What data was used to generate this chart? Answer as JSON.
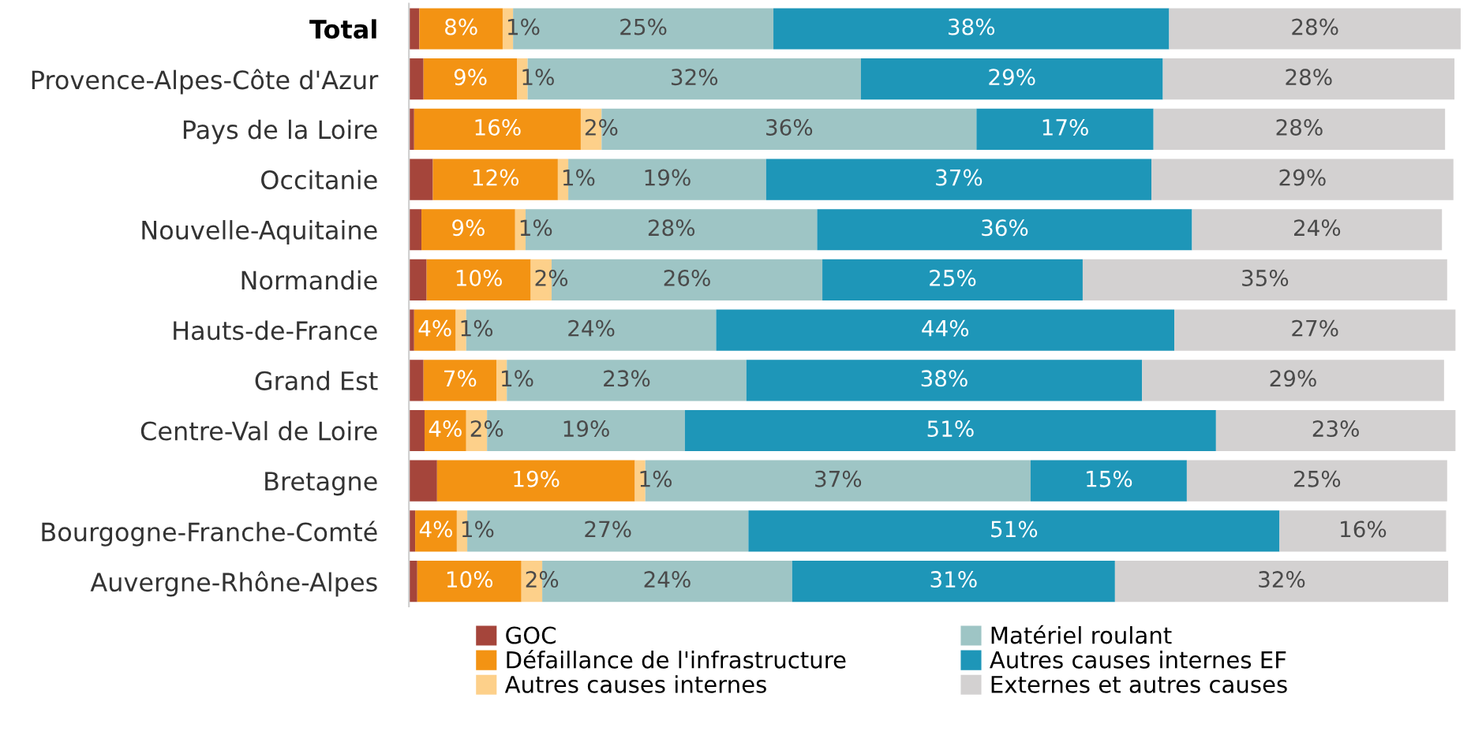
{
  "chart_data": {
    "type": "bar",
    "orientation": "horizontal",
    "stacked": true,
    "legend": "bottom",
    "categories": [
      "Total",
      "Provence-Alpes-Côte d'Azur",
      "Pays de la Loire",
      "Occitanie",
      "Nouvelle-Aquitaine",
      "Normandie",
      "Hauts-de-France",
      "Grand Est",
      "Centre-Val de Loire",
      "Bretagne",
      "Bourgogne-Franche-Comté",
      "Auvergne-Rhône-Alpes"
    ],
    "series": [
      {
        "name": "GOC",
        "color": "#a5453b",
        "values": [
          1,
          1.4,
          0.5,
          2.3,
          1.2,
          1.7,
          0.5,
          1.4,
          1.5,
          2.7,
          0.6,
          0.8
        ]
      },
      {
        "name": "Défaillance de l'infrastructure",
        "color": "#f39313",
        "values": [
          8,
          9,
          16,
          12,
          9,
          10,
          4,
          7,
          4,
          19,
          4,
          10
        ],
        "value_labels": [
          "8%",
          "9%",
          "16%",
          "12%",
          "9%",
          "10%",
          "4%",
          "7%",
          "4%",
          "19%",
          "4%",
          "10%"
        ]
      },
      {
        "name": "Autres causes internes",
        "color": "#fdd08a",
        "values": [
          1,
          1,
          2,
          1,
          1,
          2,
          1,
          1,
          2,
          1,
          1,
          2
        ],
        "value_labels": [
          "1%",
          "1%",
          "2%",
          "1%",
          "1%",
          "2%",
          "1%",
          "1%",
          "2%",
          "1%",
          "1%",
          "2%"
        ]
      },
      {
        "name": "Matériel roulant",
        "color": "#9ec5c5",
        "values": [
          25,
          32,
          36,
          19,
          28,
          26,
          24,
          23,
          19,
          37,
          27,
          24
        ],
        "value_labels": [
          "25%",
          "32%",
          "36%",
          "19%",
          "28%",
          "26%",
          "24%",
          "23%",
          "19%",
          "37%",
          "27%",
          "24%"
        ]
      },
      {
        "name": "Autres causes internes EF",
        "color": "#1e96b8",
        "values": [
          38,
          29,
          17,
          37,
          36,
          25,
          44,
          38,
          51,
          15,
          51,
          31
        ],
        "value_labels": [
          "38%",
          "29%",
          "17%",
          "37%",
          "36%",
          "25%",
          "44%",
          "38%",
          "51%",
          "15%",
          "51%",
          "31%"
        ]
      },
      {
        "name": "Externes et autres causes",
        "color": "#d3d1d1",
        "values": [
          28,
          28,
          28,
          29,
          24,
          35,
          27,
          29,
          23,
          25,
          16,
          32
        ],
        "value_labels": [
          "28%",
          "28%",
          "28%",
          "29%",
          "24%",
          "35%",
          "27%",
          "29%",
          "23%",
          "25%",
          "16%",
          "32%"
        ]
      }
    ]
  }
}
